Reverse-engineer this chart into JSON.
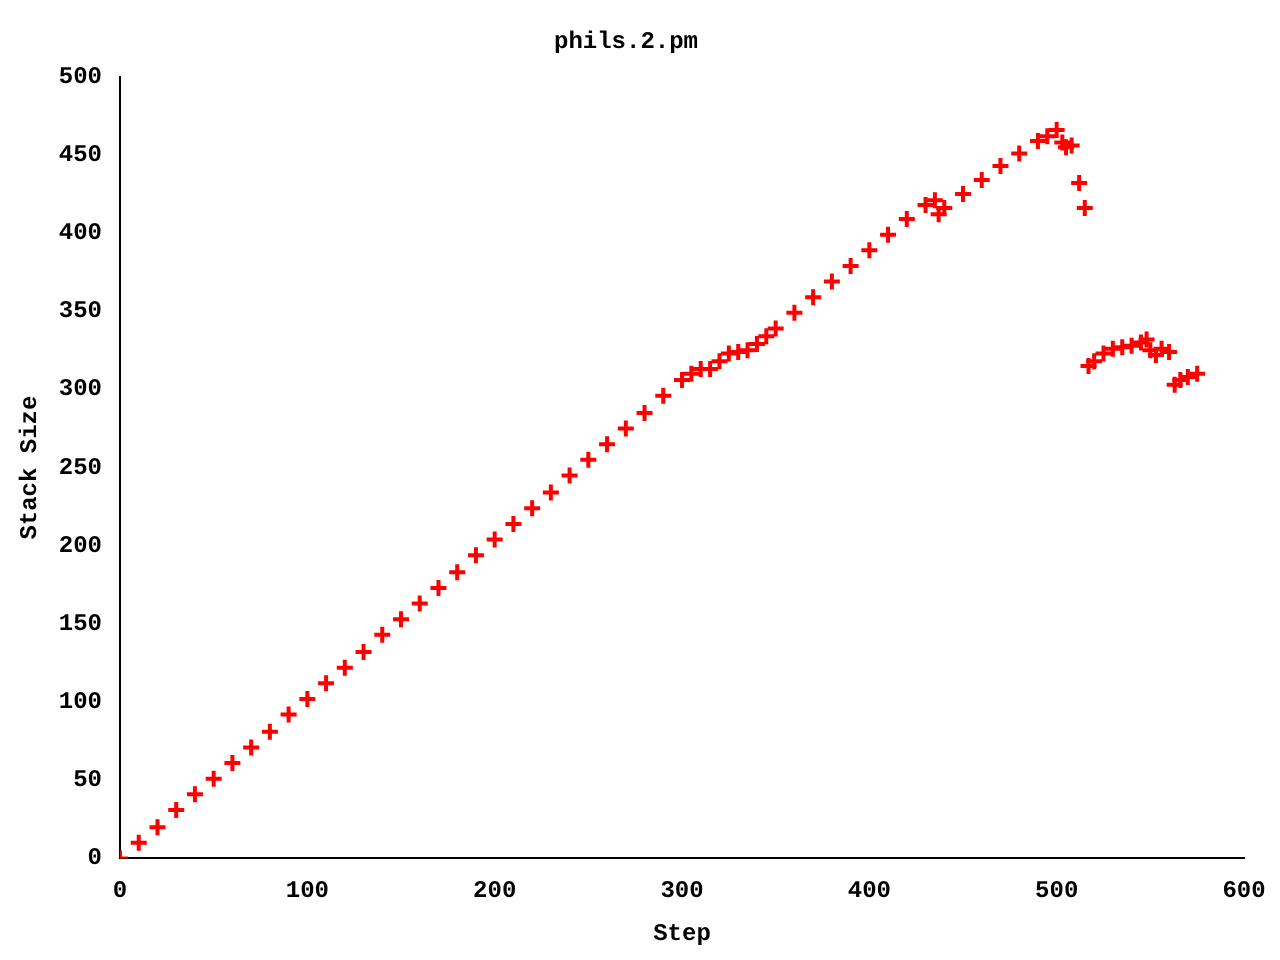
{
  "chart_data": {
    "type": "scatter",
    "title": "phils.2.pm",
    "xlabel": "Step",
    "ylabel": "Stack Size",
    "marker": "cross",
    "grid": false,
    "legend": false,
    "xlim": [
      0,
      600
    ],
    "xticks": [
      0,
      100,
      200,
      300,
      400,
      500,
      600
    ],
    "ylim": [
      0,
      500
    ],
    "yticks": [
      0,
      50,
      100,
      150,
      200,
      250,
      300,
      350,
      400,
      450,
      500
    ],
    "series": [
      {
        "color": "#ff0000",
        "x": [
          0,
          10,
          20,
          30,
          40,
          50,
          60,
          70,
          80,
          90,
          100,
          110,
          120,
          130,
          140,
          150,
          160,
          170,
          180,
          190,
          200,
          210,
          220,
          230,
          240,
          250,
          260,
          270,
          280,
          290,
          300,
          305,
          310,
          315,
          320,
          325,
          330,
          335,
          340,
          345,
          350,
          360,
          370,
          380,
          390,
          400,
          410,
          420,
          430,
          435,
          437,
          440,
          450,
          460,
          470,
          480,
          490,
          495,
          500,
          503,
          505,
          508,
          512,
          515,
          517,
          520,
          525,
          530,
          535,
          540,
          545,
          548,
          550,
          553,
          556,
          560,
          563,
          566,
          570,
          575
        ],
        "values": [
          0,
          10,
          20,
          31,
          41,
          51,
          61,
          71,
          81,
          92,
          102,
          112,
          122,
          132,
          143,
          153,
          163,
          173,
          183,
          194,
          204,
          214,
          224,
          234,
          245,
          255,
          265,
          275,
          285,
          296,
          306,
          310,
          313,
          313,
          318,
          323,
          324,
          325,
          329,
          334,
          339,
          349,
          359,
          369,
          379,
          389,
          399,
          409,
          418,
          421,
          412,
          416,
          425,
          434,
          443,
          451,
          459,
          462,
          466,
          458,
          455,
          456,
          432,
          416,
          315,
          318,
          323,
          326,
          327,
          328,
          330,
          332,
          325,
          322,
          326,
          324,
          303,
          306,
          308,
          310
        ]
      }
    ]
  }
}
